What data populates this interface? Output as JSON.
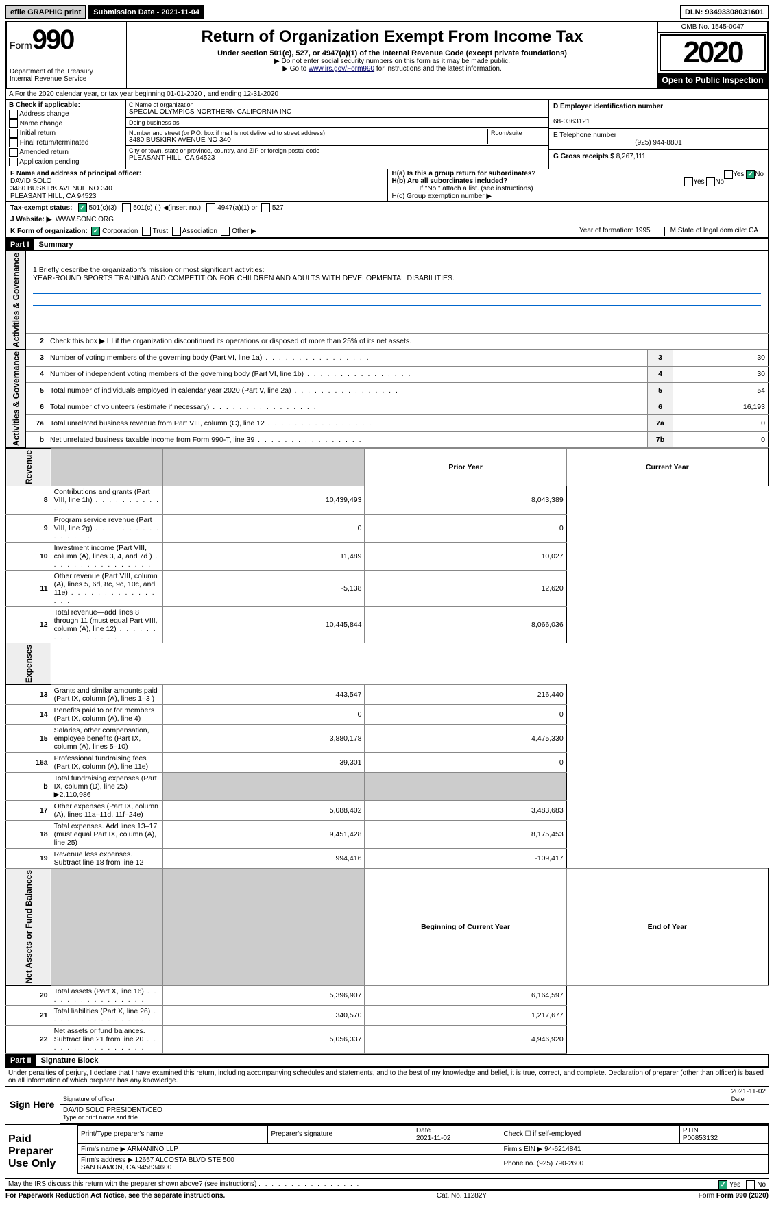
{
  "top": {
    "efile": "efile GRAPHIC print",
    "submission": "Submission Date - 2021-11-04",
    "dln": "DLN: 93493308031601"
  },
  "header": {
    "form_prefix": "Form",
    "form_number": "990",
    "dept": "Department of the Treasury\nInternal Revenue Service",
    "title": "Return of Organization Exempt From Income Tax",
    "subtitle": "Under section 501(c), 527, or 4947(a)(1) of the Internal Revenue Code (except private foundations)",
    "note1": "▶ Do not enter social security numbers on this form as it may be made public.",
    "note2_pre": "▶ Go to ",
    "note2_link": "www.irs.gov/Form990",
    "note2_post": " for instructions and the latest information.",
    "omb": "OMB No. 1545-0047",
    "year": "2020",
    "open": "Open to Public Inspection"
  },
  "rowA": "A For the 2020 calendar year, or tax year beginning 01-01-2020    , and ending 12-31-2020",
  "colB": {
    "label": "B Check if applicable:",
    "items": [
      "Address change",
      "Name change",
      "Initial return",
      "Final return/terminated",
      "Amended return",
      "Application pending"
    ]
  },
  "colC": {
    "name_label": "C Name of organization",
    "name": "SPECIAL OLYMPICS NORTHERN CALIFORNIA INC",
    "dba_label": "Doing business as",
    "dba": "",
    "addr_label": "Number and street (or P.O. box if mail is not delivered to street address)",
    "room_label": "Room/suite",
    "addr": "3480 BUSKIRK AVENUE NO 340",
    "city_label": "City or town, state or province, country, and ZIP or foreign postal code",
    "city": "PLEASANT HILL, CA  94523"
  },
  "colD": {
    "label": "D Employer identification number",
    "val": "68-0363121"
  },
  "colE": {
    "label": "E Telephone number",
    "val": "(925) 944-8801"
  },
  "colG": {
    "label": "G Gross receipts $",
    "val": "8,267,111"
  },
  "rowF": {
    "label": "F Name and address of principal officer:",
    "name": "DAVID SOLO",
    "addr": "3480 BUSKIRK AVENUE NO 340\nPLEASANT HILL, CA  94523"
  },
  "colH": {
    "a": "H(a)  Is this a group return for subordinates?",
    "b": "H(b)  Are all subordinates included?",
    "b_note": "If \"No,\" attach a list. (see instructions)",
    "c": "H(c)  Group exemption number ▶"
  },
  "rowI": {
    "label": "Tax-exempt status:",
    "opts": [
      "501(c)(3)",
      "501(c) (  ) ◀(insert no.)",
      "4947(a)(1) or",
      "527"
    ]
  },
  "rowJ": {
    "label": "J   Website: ▶",
    "val": "WWW.SONC.ORG"
  },
  "rowK": {
    "label": "K Form of organization:",
    "opts": [
      "Corporation",
      "Trust",
      "Association",
      "Other ▶"
    ],
    "l": "L Year of formation: 1995",
    "m": "M State of legal domicile: CA"
  },
  "part1": {
    "hdr": "Part I",
    "title": "Summary",
    "l1_label": "1  Briefly describe the organization's mission or most significant activities:",
    "l1_val": "YEAR-ROUND SPORTS TRAINING AND COMPETITION FOR CHILDREN AND ADULTS WITH DEVELOPMENTAL DISABILITIES.",
    "l2": "Check this box ▶ ☐  if the organization discontinued its operations or disposed of more than 25% of its net assets.",
    "rows_gov": [
      {
        "n": "3",
        "d": "Number of voting members of the governing body (Part VI, line 1a)",
        "b": "3",
        "v": "30"
      },
      {
        "n": "4",
        "d": "Number of independent voting members of the governing body (Part VI, line 1b)",
        "b": "4",
        "v": "30"
      },
      {
        "n": "5",
        "d": "Total number of individuals employed in calendar year 2020 (Part V, line 2a)",
        "b": "5",
        "v": "54"
      },
      {
        "n": "6",
        "d": "Total number of volunteers (estimate if necessary)",
        "b": "6",
        "v": "16,193"
      },
      {
        "n": "7a",
        "d": "Total unrelated business revenue from Part VIII, column (C), line 12",
        "b": "7a",
        "v": "0"
      },
      {
        "n": "b",
        "d": "Net unrelated business taxable income from Form 990-T, line 39",
        "b": "7b",
        "v": "0"
      }
    ],
    "col_py": "Prior Year",
    "col_cy": "Current Year",
    "rows_rev": [
      {
        "n": "8",
        "d": "Contributions and grants (Part VIII, line 1h)",
        "py": "10,439,493",
        "cy": "8,043,389"
      },
      {
        "n": "9",
        "d": "Program service revenue (Part VIII, line 2g)",
        "py": "0",
        "cy": "0"
      },
      {
        "n": "10",
        "d": "Investment income (Part VIII, column (A), lines 3, 4, and 7d )",
        "py": "11,489",
        "cy": "10,027"
      },
      {
        "n": "11",
        "d": "Other revenue (Part VIII, column (A), lines 5, 6d, 8c, 9c, 10c, and 11e)",
        "py": "-5,138",
        "cy": "12,620"
      },
      {
        "n": "12",
        "d": "Total revenue—add lines 8 through 11 (must equal Part VIII, column (A), line 12)",
        "py": "10,445,844",
        "cy": "8,066,036"
      }
    ],
    "rows_exp": [
      {
        "n": "13",
        "d": "Grants and similar amounts paid (Part IX, column (A), lines 1–3 )",
        "py": "443,547",
        "cy": "216,440"
      },
      {
        "n": "14",
        "d": "Benefits paid to or for members (Part IX, column (A), line 4)",
        "py": "0",
        "cy": "0"
      },
      {
        "n": "15",
        "d": "Salaries, other compensation, employee benefits (Part IX, column (A), lines 5–10)",
        "py": "3,880,178",
        "cy": "4,475,330"
      },
      {
        "n": "16a",
        "d": "Professional fundraising fees (Part IX, column (A), line 11e)",
        "py": "39,301",
        "cy": "0"
      },
      {
        "n": "b",
        "d": "Total fundraising expenses (Part IX, column (D), line 25) ▶2,110,986",
        "py": "",
        "cy": ""
      },
      {
        "n": "17",
        "d": "Other expenses (Part IX, column (A), lines 11a–11d, 11f–24e)",
        "py": "5,088,402",
        "cy": "3,483,683"
      },
      {
        "n": "18",
        "d": "Total expenses. Add lines 13–17 (must equal Part IX, column (A), line 25)",
        "py": "9,451,428",
        "cy": "8,175,453"
      },
      {
        "n": "19",
        "d": "Revenue less expenses. Subtract line 18 from line 12",
        "py": "994,416",
        "cy": "-109,417"
      }
    ],
    "col_boy": "Beginning of Current Year",
    "col_eoy": "End of Year",
    "rows_net": [
      {
        "n": "20",
        "d": "Total assets (Part X, line 16)",
        "py": "5,396,907",
        "cy": "6,164,597"
      },
      {
        "n": "21",
        "d": "Total liabilities (Part X, line 26)",
        "py": "340,570",
        "cy": "1,217,677"
      },
      {
        "n": "22",
        "d": "Net assets or fund balances. Subtract line 21 from line 20",
        "py": "5,056,337",
        "cy": "4,946,920"
      }
    ],
    "side_gov": "Activities & Governance",
    "side_rev": "Revenue",
    "side_exp": "Expenses",
    "side_net": "Net Assets or Fund Balances"
  },
  "part2": {
    "hdr": "Part II",
    "title": "Signature Block",
    "decl": "Under penalties of perjury, I declare that I have examined this return, including accompanying schedules and statements, and to the best of my knowledge and belief, it is true, correct, and complete. Declaration of preparer (other than officer) is based on all information of which preparer has any knowledge.",
    "sign_here": "Sign Here",
    "sig_officer": "Signature of officer",
    "date": "2021-11-02",
    "date_label": "Date",
    "officer": "DAVID SOLO  PRESIDENT/CEO",
    "officer_label": "Type or print name and title",
    "paid": "Paid Preparer Use Only",
    "pp_name_label": "Print/Type preparer's name",
    "pp_sig_label": "Preparer's signature",
    "pp_date": "2021-11-02",
    "pp_check": "Check ☐ if self-employed",
    "ptin_label": "PTIN",
    "ptin": "P00853132",
    "firm_name_label": "Firm's name    ▶",
    "firm_name": "ARMANINO LLP",
    "firm_ein_label": "Firm's EIN ▶",
    "firm_ein": "94-6214841",
    "firm_addr_label": "Firm's address ▶",
    "firm_addr": "12657 ALCOSTA BLVD STE 500\nSAN RAMON, CA  945834600",
    "phone_label": "Phone no.",
    "phone": "(925) 790-2600",
    "discuss": "May the IRS discuss this return with the preparer shown above? (see instructions)"
  },
  "footer": {
    "pra": "For Paperwork Reduction Act Notice, see the separate instructions.",
    "cat": "Cat. No. 11282Y",
    "form": "Form 990 (2020)"
  }
}
